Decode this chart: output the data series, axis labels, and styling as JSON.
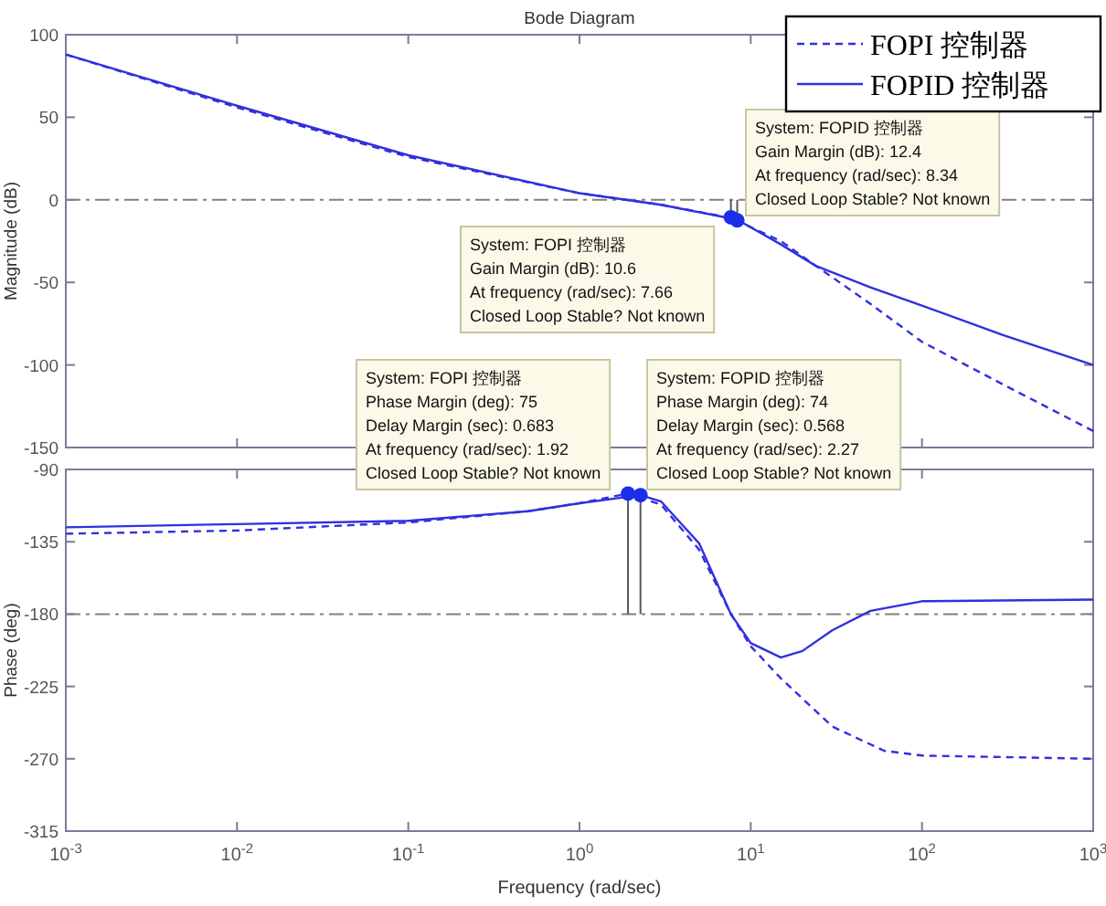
{
  "chart_data": [
    {
      "type": "line",
      "title": "Bode Diagram",
      "ylabel": "Magnitude (dB)",
      "log": "x",
      "xlim": [
        0.001,
        1000
      ],
      "ylim": [
        -150,
        100
      ],
      "xticks": [
        {
          "value": 0.001,
          "label": null
        },
        {
          "value": 0.01,
          "label": null
        },
        {
          "value": 0.1,
          "label": null
        },
        {
          "value": 1,
          "label": null
        },
        {
          "value": 10,
          "label": null
        },
        {
          "value": 100,
          "label": null
        },
        {
          "value": 1000,
          "label": null
        }
      ],
      "yticks": [
        -150,
        -100,
        -50,
        0,
        50,
        100
      ],
      "tick_labels": "y",
      "legend": "top right",
      "series": [
        {
          "name": "FOPI 控制器",
          "color": "#3030e0",
          "line_style": "dashed",
          "x": [
            0.001,
            0.01,
            0.1,
            1,
            3,
            7.66,
            15,
            24,
            50,
            100,
            300,
            1000
          ],
          "values": [
            88,
            56,
            26,
            4,
            -3,
            -11,
            -25,
            -40,
            -63,
            -86,
            -112,
            -140
          ]
        },
        {
          "name": "FOPID 控制器",
          "color": "#3030e0",
          "line_style": "solid",
          "x": [
            0.001,
            0.01,
            0.1,
            1,
            3,
            8.34,
            15,
            24,
            50,
            100,
            300,
            1000
          ],
          "values": [
            88,
            57,
            27,
            4,
            -3,
            -12,
            -27,
            -40,
            -53,
            -64,
            -82,
            -100
          ]
        }
      ],
      "ref_lines": [
        {
          "axis": "y",
          "value": 0,
          "line_style": "dashed",
          "color": "#808080"
        }
      ],
      "annotations": [
        {
          "text": "System: FOPID 控制器\nGain Margin (dB): 12.4\nAt frequency (rad/sec): 8.34\nClosed Loop Stable? Not known",
          "x": 8.34,
          "y": -12.4
        },
        {
          "text": "System: FOPI 控制器\nGain Margin (dB): 10.6\nAt frequency (rad/sec): 7.66\nClosed Loop Stable? Not known",
          "x": 7.66,
          "y": -10.6
        }
      ]
    },
    {
      "type": "line",
      "xlabel": "Frequency  (rad/sec)",
      "ylabel": "Phase (deg)",
      "log": "x",
      "xlim": [
        0.001,
        1000
      ],
      "ylim": [
        -315,
        -90
      ],
      "xticks": [
        {
          "value": 0.001,
          "label": "10$^{-3}$"
        },
        {
          "value": 0.01,
          "label": "10$^{-2}$"
        },
        {
          "value": 0.1,
          "label": "10$^{-1}$"
        },
        {
          "value": 1,
          "label": "10$^{0}$"
        },
        {
          "value": 10,
          "label": "10$^{1}$"
        },
        {
          "value": 100,
          "label": "10$^{2}$"
        },
        {
          "value": 1000,
          "label": "10$^{3}$"
        }
      ],
      "yticks": [
        -315,
        -270,
        -225,
        -180,
        -135,
        -90
      ],
      "series": [
        {
          "color": "#3030e0",
          "line_style": "dashed",
          "x": [
            0.001,
            0.01,
            0.1,
            0.5,
            1,
            1.92,
            3,
            5,
            7.66,
            10,
            15,
            30,
            60,
            100,
            1000
          ],
          "values": [
            -130,
            -128,
            -123,
            -116,
            -111,
            -105,
            -112,
            -140,
            -180,
            -200,
            -220,
            -250,
            -265,
            -268,
            -270
          ]
        },
        {
          "color": "#3030e0",
          "line_style": "solid",
          "x": [
            0.001,
            0.01,
            0.1,
            0.5,
            1,
            2.27,
            3,
            5,
            7.66,
            10,
            15,
            20,
            30,
            50,
            100,
            1000
          ],
          "values": [
            -126,
            -124,
            -122,
            -116,
            -111,
            -106,
            -110,
            -136,
            -180,
            -198,
            -207,
            -203,
            -190,
            -178,
            -172,
            -171
          ]
        }
      ],
      "ref_lines": [
        {
          "axis": "y",
          "value": -180,
          "line_style": "dashed",
          "color": "#808080"
        }
      ],
      "annotations": [
        {
          "text": "System: FOPI 控制器\nPhase Margin (deg): 75\nDelay Margin (sec): 0.683\nAt frequency (rad/sec): 1.92\nClosed Loop Stable? Not known",
          "x": 1.92,
          "y": -105
        },
        {
          "text": "System: FOPID 控制器\nPhase Margin (deg): 74\nDelay Margin (sec): 0.568\nAt frequency (rad/sec): 2.27\nClosed Loop Stable? Not known",
          "x": 2.27,
          "y": -106
        }
      ]
    }
  ]
}
